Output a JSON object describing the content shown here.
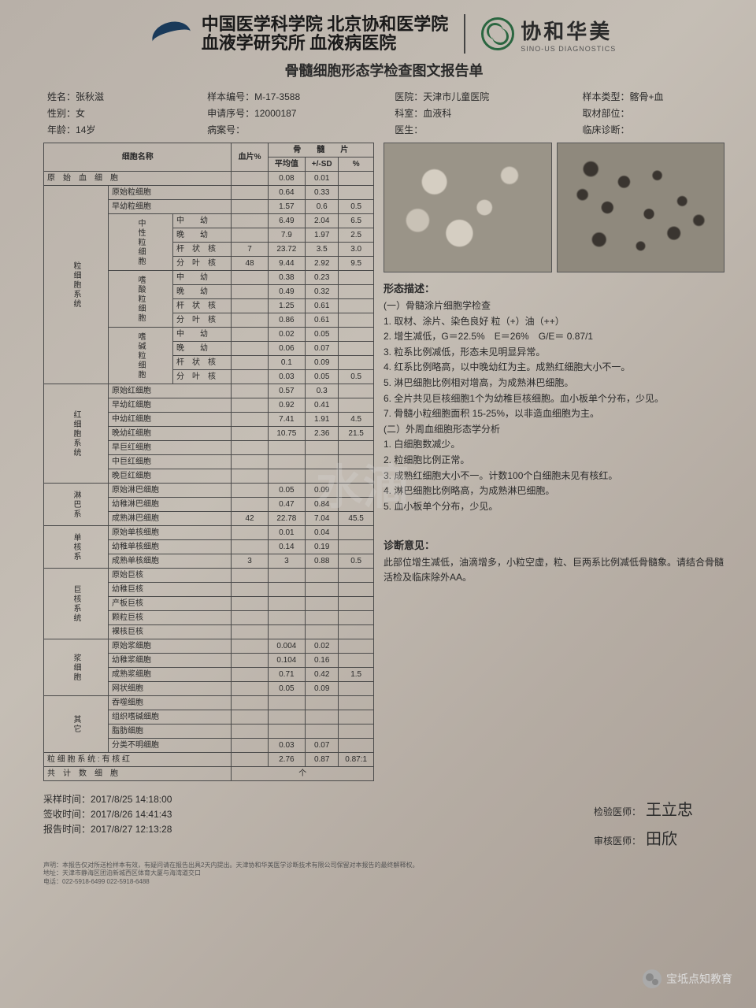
{
  "header": {
    "script_line1": "中国医学科学院 北京协和医学院",
    "script_line2": "血液学研究所 血液病医院",
    "brand_cn": "协和华美",
    "brand_en": "SINO-US DIAGNOSTICS"
  },
  "report_title": "骨髓细胞形态学检查图文报告单",
  "patient": {
    "name_lbl": "姓名：",
    "name": "张秋滋",
    "sample_lbl": "样本编号：",
    "sample": "M-17-3588",
    "hosp_lbl": "医院：",
    "hosp": "天津市儿童医院",
    "stype_lbl": "样本类型：",
    "stype": "髂骨+血",
    "sex_lbl": "性别：",
    "sex": "女",
    "req_lbl": "申请序号：",
    "req": "12000187",
    "dept_lbl": "科室：",
    "dept": "血液科",
    "site_lbl": "取材部位：",
    "site": "",
    "age_lbl": "年龄：",
    "age": "14岁",
    "case_lbl": "病案号：",
    "case": "",
    "doc_lbl": "医生：",
    "doc": "",
    "clin_lbl": "临床诊断：",
    "clin": ""
  },
  "thead": {
    "cellname": "细胞名称",
    "blood": "血片%",
    "marrow": "骨　　髓　　片",
    "avg": "平均值",
    "sd": "+/-SD",
    "pct": "%"
  },
  "rows": [
    {
      "g": "",
      "n": "原　始　血　细　胞",
      "b": "",
      "a": "0.08",
      "s": "0.01",
      "p": ""
    },
    {
      "g": "粒细胞系统",
      "n": "原始粒细胞",
      "b": "",
      "a": "0.64",
      "s": "0.33",
      "p": ""
    },
    {
      "g": "",
      "n": "早幼粒细胞",
      "b": "",
      "a": "1.57",
      "s": "0.6",
      "p": "0.5"
    },
    {
      "g": "",
      "sub": "中性粒细胞",
      "n": "中　　幼",
      "b": "",
      "a": "6.49",
      "s": "2.04",
      "p": "6.5"
    },
    {
      "g": "",
      "n": "晚　　幼",
      "b": "",
      "a": "7.9",
      "s": "1.97",
      "p": "2.5"
    },
    {
      "g": "",
      "n": "杆　状　核",
      "b": "7",
      "a": "23.72",
      "s": "3.5",
      "p": "3.0"
    },
    {
      "g": "",
      "n": "分　叶　核",
      "b": "48",
      "a": "9.44",
      "s": "2.92",
      "p": "9.5"
    },
    {
      "g": "",
      "sub": "嗜酸粒细胞",
      "n": "中　　幼",
      "b": "",
      "a": "0.38",
      "s": "0.23",
      "p": ""
    },
    {
      "g": "",
      "n": "晚　　幼",
      "b": "",
      "a": "0.49",
      "s": "0.32",
      "p": ""
    },
    {
      "g": "",
      "n": "杆　状　核",
      "b": "",
      "a": "1.25",
      "s": "0.61",
      "p": ""
    },
    {
      "g": "",
      "n": "分　叶　核",
      "b": "",
      "a": "0.86",
      "s": "0.61",
      "p": ""
    },
    {
      "g": "",
      "sub": "嗜碱粒细胞",
      "n": "中　　幼",
      "b": "",
      "a": "0.02",
      "s": "0.05",
      "p": ""
    },
    {
      "g": "",
      "n": "晚　　幼",
      "b": "",
      "a": "0.06",
      "s": "0.07",
      "p": ""
    },
    {
      "g": "",
      "n": "杆　状　核",
      "b": "",
      "a": "0.1",
      "s": "0.09",
      "p": ""
    },
    {
      "g": "",
      "n": "分　叶　核",
      "b": "",
      "a": "0.03",
      "s": "0.05",
      "p": "0.5"
    },
    {
      "g": "红细胞系统",
      "n": "原始红细胞",
      "b": "",
      "a": "0.57",
      "s": "0.3",
      "p": ""
    },
    {
      "g": "",
      "n": "早幼红细胞",
      "b": "",
      "a": "0.92",
      "s": "0.41",
      "p": ""
    },
    {
      "g": "",
      "n": "中幼红细胞",
      "b": "",
      "a": "7.41",
      "s": "1.91",
      "p": "4.5"
    },
    {
      "g": "",
      "n": "晚幼红细胞",
      "b": "",
      "a": "10.75",
      "s": "2.36",
      "p": "21.5"
    },
    {
      "g": "",
      "n": "早巨红细胞",
      "b": "",
      "a": "",
      "s": "",
      "p": ""
    },
    {
      "g": "",
      "n": "中巨红细胞",
      "b": "",
      "a": "",
      "s": "",
      "p": ""
    },
    {
      "g": "",
      "n": "晚巨红细胞",
      "b": "",
      "a": "",
      "s": "",
      "p": ""
    },
    {
      "g": "淋巴系",
      "n": "原始淋巴细胞",
      "b": "",
      "a": "0.05",
      "s": "0.09",
      "p": ""
    },
    {
      "g": "",
      "n": "幼稚淋巴细胞",
      "b": "",
      "a": "0.47",
      "s": "0.84",
      "p": ""
    },
    {
      "g": "",
      "n": "成熟淋巴细胞",
      "b": "42",
      "a": "22.78",
      "s": "7.04",
      "p": "45.5"
    },
    {
      "g": "单核系",
      "n": "原始单核细胞",
      "b": "",
      "a": "0.01",
      "s": "0.04",
      "p": ""
    },
    {
      "g": "",
      "n": "幼稚单核细胞",
      "b": "",
      "a": "0.14",
      "s": "0.19",
      "p": ""
    },
    {
      "g": "",
      "n": "成熟单核细胞",
      "b": "3",
      "a": "3",
      "s": "0.88",
      "p": "0.5"
    },
    {
      "g": "巨核系统",
      "n": "原始巨核",
      "b": "",
      "a": "",
      "s": "",
      "p": ""
    },
    {
      "g": "",
      "n": "幼稚巨核",
      "b": "",
      "a": "",
      "s": "",
      "p": ""
    },
    {
      "g": "",
      "n": "产板巨核",
      "b": "",
      "a": "",
      "s": "",
      "p": ""
    },
    {
      "g": "",
      "n": "颗粒巨核",
      "b": "",
      "a": "",
      "s": "",
      "p": ""
    },
    {
      "g": "",
      "n": "裸核巨核",
      "b": "",
      "a": "",
      "s": "",
      "p": ""
    },
    {
      "g": "浆细胞",
      "n": "原始浆细胞",
      "b": "",
      "a": "0.004",
      "s": "0.02",
      "p": ""
    },
    {
      "g": "",
      "n": "幼稚浆细胞",
      "b": "",
      "a": "0.104",
      "s": "0.16",
      "p": ""
    },
    {
      "g": "",
      "n": "成熟浆细胞",
      "b": "",
      "a": "0.71",
      "s": "0.42",
      "p": "1.5"
    },
    {
      "g": "",
      "n": "网状细胞",
      "b": "",
      "a": "0.05",
      "s": "0.09",
      "p": ""
    },
    {
      "g": "其它",
      "n": "吞噬细胞",
      "b": "",
      "a": "",
      "s": "",
      "p": ""
    },
    {
      "g": "",
      "n": "组织嗜碱细胞",
      "b": "",
      "a": "",
      "s": "",
      "p": ""
    },
    {
      "g": "",
      "n": "脂肪细胞",
      "b": "",
      "a": "",
      "s": "",
      "p": ""
    },
    {
      "g": "",
      "n": "分类不明细胞",
      "b": "",
      "a": "0.03",
      "s": "0.07",
      "p": ""
    }
  ],
  "ratio_row": {
    "n": "粒 细 胞 系 统 : 有 核 红",
    "b": "",
    "a": "2.76",
    "s": "0.87",
    "p": "0.87:1"
  },
  "count_row": {
    "n": "共　计　数　细　胞",
    "v": "个"
  },
  "morph": {
    "title": "形态描述：",
    "sub1": "(一）骨髓涂片细胞学检查",
    "l1": "1. 取材、涂片、染色良好 粒（+）油（++）",
    "l2": "2. 增生减低，G＝22.5%　E＝26%　G/E＝ 0.87/1",
    "l3": "3. 粒系比例减低，形态未见明显异常。",
    "l4": "4. 红系比例略高，以中晚幼红为主。成熟红细胞大小不一。",
    "l5": "5. 淋巴细胞比例相对增高，为成熟淋巴细胞。",
    "l6": "6. 全片共见巨核细胞1个为幼稚巨核细胞。血小板单个分布，少见。",
    "l7": "7. 骨髓小粒细胞面积 15-25%，以非造血细胞为主。",
    "sub2": "(二）外周血细胞形态学分析",
    "b1": "1. 白细胞数减少。",
    "b2": "2. 粒细胞比例正常。",
    "b3": "3. 成熟红细胞大小不一。计数100个白细胞未见有核红。",
    "b4": "4. 淋巴细胞比例略高，为成熟淋巴细胞。",
    "b5": "5. 血小板单个分布，少见。"
  },
  "diag": {
    "title": "诊断意见：",
    "text": "此部位增生减低，油滴增多，小粒空虚，粒、巨两系比例减低骨髓象。请结合骨髓活检及临床除外AA。"
  },
  "footer": {
    "t1_lbl": "采样时间：",
    "t1": "2017/8/25 14:18:00",
    "t2_lbl": "签收时间：",
    "t2": "2017/8/26 14:41:43",
    "t3_lbl": "报告时间：",
    "t3": "2017/8/27 12:13:28",
    "s1_lbl": "检验医师：",
    "s1": "王立忠",
    "s2_lbl": "审核医师：",
    "s2": "田欣"
  },
  "disclaimer": {
    "d1": "声明：本报告仅对所送检样本有效，有疑问请在报告出具2天内提出。天津协和华美医学诊断技术有限公司保留对本报告的最终解释权。",
    "d2": "地址：天津市静海区团泊新城西区体育大厦与海湾道交口",
    "d3": "电话：022-5918-6499 022-5918-6488"
  },
  "wechat": "宝坻点知教育",
  "watermark": "水滴"
}
